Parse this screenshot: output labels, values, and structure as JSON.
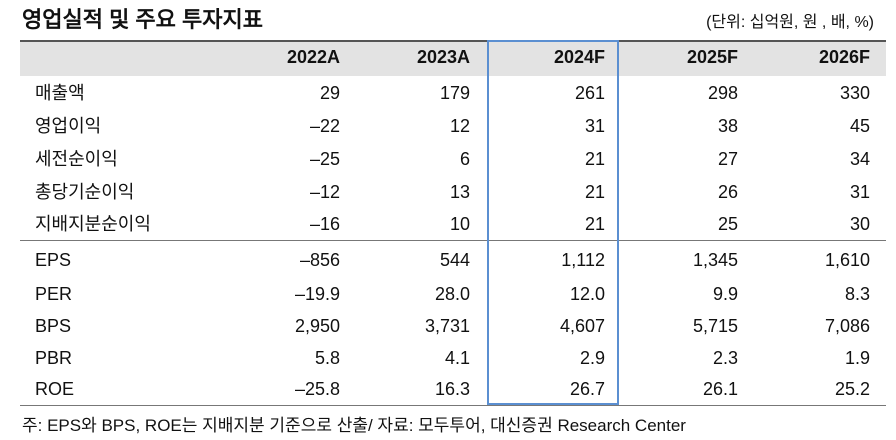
{
  "header": {
    "title": "영업실적 및 주요 투자지표",
    "unit": "(단위: 십억원, 원 , 배, %)"
  },
  "table": {
    "columns": [
      "2022A",
      "2023A",
      "2024F",
      "2025F",
      "2026F"
    ],
    "rows": [
      [
        "매출액",
        "29",
        "179",
        "261",
        "298",
        "330"
      ],
      [
        "영업이익",
        "–22",
        "12",
        "31",
        "38",
        "45"
      ],
      [
        "세전순이익",
        "–25",
        "6",
        "21",
        "27",
        "34"
      ],
      [
        "총당기순이익",
        "–12",
        "13",
        "21",
        "26",
        "31"
      ],
      [
        "지배지분순이익",
        "–16",
        "10",
        "21",
        "25",
        "30"
      ],
      [
        "EPS",
        "–856",
        "544",
        "1,112",
        "1,345",
        "1,610"
      ],
      [
        "PER",
        "–19.9",
        "28.0",
        "12.0",
        "9.9",
        "8.3"
      ],
      [
        "BPS",
        "2,950",
        "3,731",
        "4,607",
        "5,715",
        "7,086"
      ],
      [
        "PBR",
        "5.8",
        "4.1",
        "2.9",
        "2.3",
        "1.9"
      ],
      [
        "ROE",
        "–25.8",
        "16.3",
        "26.7",
        "26.1",
        "25.2"
      ]
    ]
  },
  "footer": {
    "note": "주: EPS와 BPS, ROE는 지배지분 기준으로 산출/ 자료: 모두투어, 대신증권 Research Center"
  }
}
